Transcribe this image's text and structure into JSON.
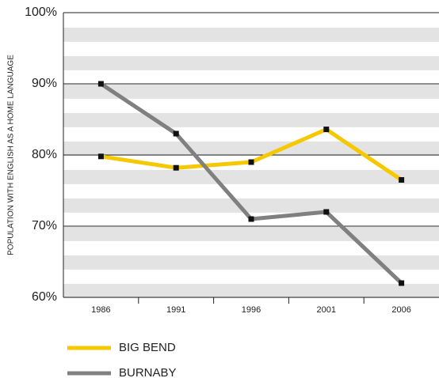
{
  "chart_data": {
    "type": "line",
    "y_label": "POPULATION WITH ENGLISH AS A HOME LANGUAGE",
    "categories": [
      "1986",
      "1991",
      "1996",
      "2001",
      "2006"
    ],
    "series": [
      {
        "name": "BIG BEND",
        "color": "#f5c800",
        "values": [
          79.8,
          78.2,
          79,
          83.6,
          76.5
        ]
      },
      {
        "name": "BURNABY",
        "color": "#808080",
        "values": [
          90,
          83,
          71,
          72,
          62
        ]
      }
    ],
    "ylim": [
      60,
      100
    ],
    "yticks": [
      {
        "value": 60,
        "label": "60%"
      },
      {
        "value": 70,
        "label": "70%"
      },
      {
        "value": 80,
        "label": "80%"
      },
      {
        "value": 90,
        "label": "90%"
      },
      {
        "value": 100,
        "label": "100%"
      }
    ],
    "grid": true
  }
}
